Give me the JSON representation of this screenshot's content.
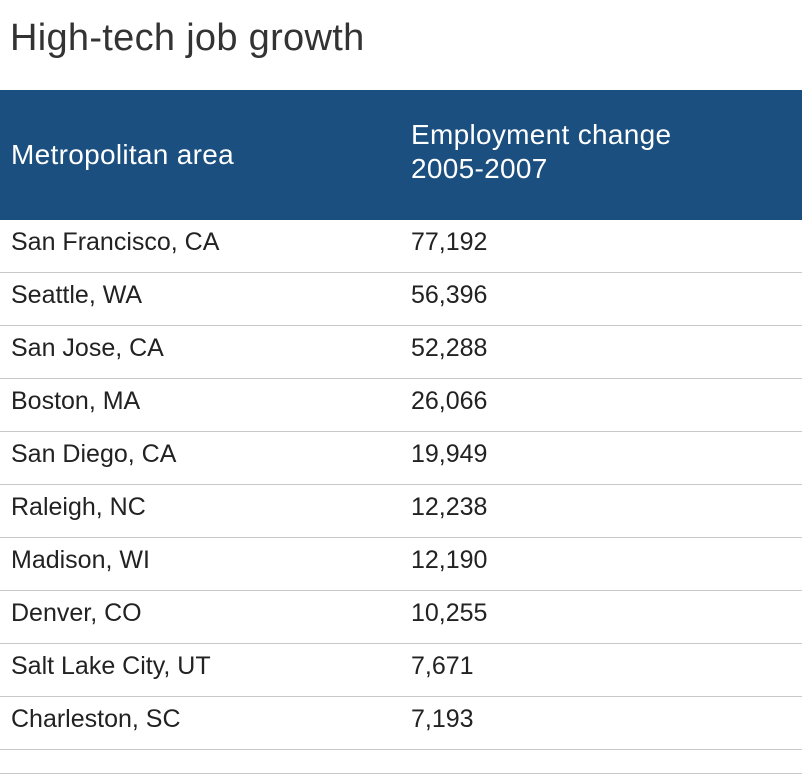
{
  "chart_data": {
    "type": "table",
    "title": "High-tech job growth",
    "columns": [
      "Metropolitan area",
      "Employment change 2005-2007"
    ],
    "header_col2_lines": [
      "Employment change",
      "2005-2007"
    ],
    "rows": [
      {
        "area": "San Francisco, CA",
        "change": "77,192"
      },
      {
        "area": "Seattle, WA",
        "change": "56,396"
      },
      {
        "area": "San Jose, CA",
        "change": "52,288"
      },
      {
        "area": "Boston, MA",
        "change": "26,066"
      },
      {
        "area": "San Diego, CA",
        "change": "19,949"
      },
      {
        "area": "Raleigh, NC",
        "change": "12,238"
      },
      {
        "area": "Madison, WI",
        "change": "12,190"
      },
      {
        "area": "Denver, CO",
        "change": "10,255"
      },
      {
        "area": "Salt Lake City, UT",
        "change": "7,671"
      },
      {
        "area": "Charleston, SC",
        "change": "7,193"
      }
    ]
  },
  "colors": {
    "header_bg": "#1a4f7f",
    "header_text": "#ffffff",
    "rule": "#c9c9c9"
  }
}
